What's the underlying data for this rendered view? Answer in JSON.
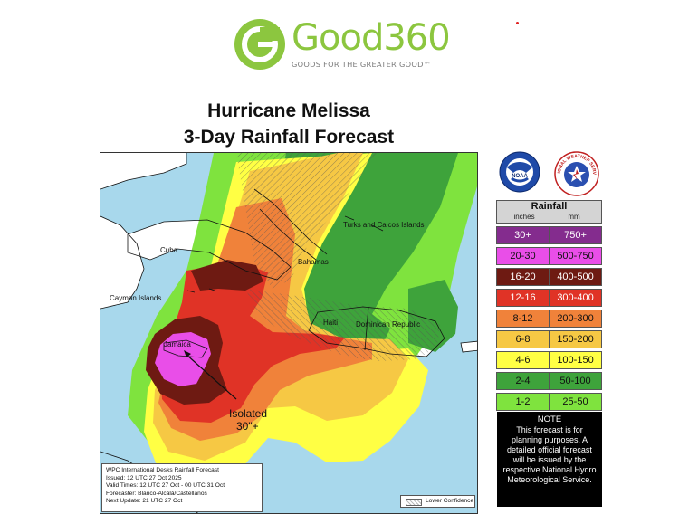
{
  "header": {
    "logo_text": "Good360",
    "tagline": "GOODS FOR THE GREATER GOOD™",
    "logo_icon": "good360-g-icon",
    "brand_color": "#8cc63f"
  },
  "title": {
    "line1": "Hurricane Melissa",
    "line2": "3-Day Rainfall Forecast"
  },
  "map": {
    "labels": {
      "cuba": "Cuba",
      "bahamas": "Bahamas",
      "turks_caicos": "Turks and Caicos Islands",
      "cayman": "Cayman Islands",
      "haiti": "Haiti",
      "dominican_republic": "Dominican Republic",
      "jamaica": "Jamaica",
      "isolated_line1": "Isolated",
      "isolated_line2": "30\"+"
    },
    "info_box": {
      "line1": "WPC International Desks Rainfall Forecast",
      "line2": "Issued: 12 UTC 27 Oct 2025",
      "line3": "Valid Times: 12 UTC 27 Oct - 00 UTC 31 Oct",
      "line4": "Forecaster: Blanco-Alcalá/Castellanos",
      "line5": "Next Update: 21 UTC 27 Oct"
    },
    "lower_confidence_label": "Lower Confidence",
    "colors": {
      "water": "#a8d8ec",
      "land": "#ffffff",
      "c1_2": "#7fe33e",
      "c2_4": "#3ea33b",
      "c4_6": "#ffff44",
      "c6_8": "#f6c844",
      "c8_12": "#f0823a",
      "c12_16": "#e03326",
      "c16_20": "#6e1a12",
      "c20_30": "#e94ee8"
    }
  },
  "agencies": {
    "noaa_text": "NOAA",
    "nws_text": "NATIONAL WEATHER SERVICE"
  },
  "legend": {
    "title": "Rainfall",
    "unit_inches": "inches",
    "unit_mm": "mm",
    "rows": [
      {
        "inches": "30+",
        "mm": "750+",
        "color": "#842c8e"
      },
      {
        "inches": "20-30",
        "mm": "500-750",
        "color": "#e94ee8"
      },
      {
        "inches": "16-20",
        "mm": "400-500",
        "color": "#6e1a12"
      },
      {
        "inches": "12-16",
        "mm": "300-400",
        "color": "#e03326"
      },
      {
        "inches": "8-12",
        "mm": "200-300",
        "color": "#f0823a"
      },
      {
        "inches": "6-8",
        "mm": "150-200",
        "color": "#f6c844"
      },
      {
        "inches": "4-6",
        "mm": "100-150",
        "color": "#ffff44"
      },
      {
        "inches": "2-4",
        "mm": "50-100",
        "color": "#3ea33b"
      },
      {
        "inches": "1-2",
        "mm": "25-50",
        "color": "#7fe33e"
      }
    ]
  },
  "note": {
    "title": "NOTE",
    "text": "This forecast is for planning purposes. A detailed official forecast will be issued by the respective National Hydro Meteorological Service."
  }
}
